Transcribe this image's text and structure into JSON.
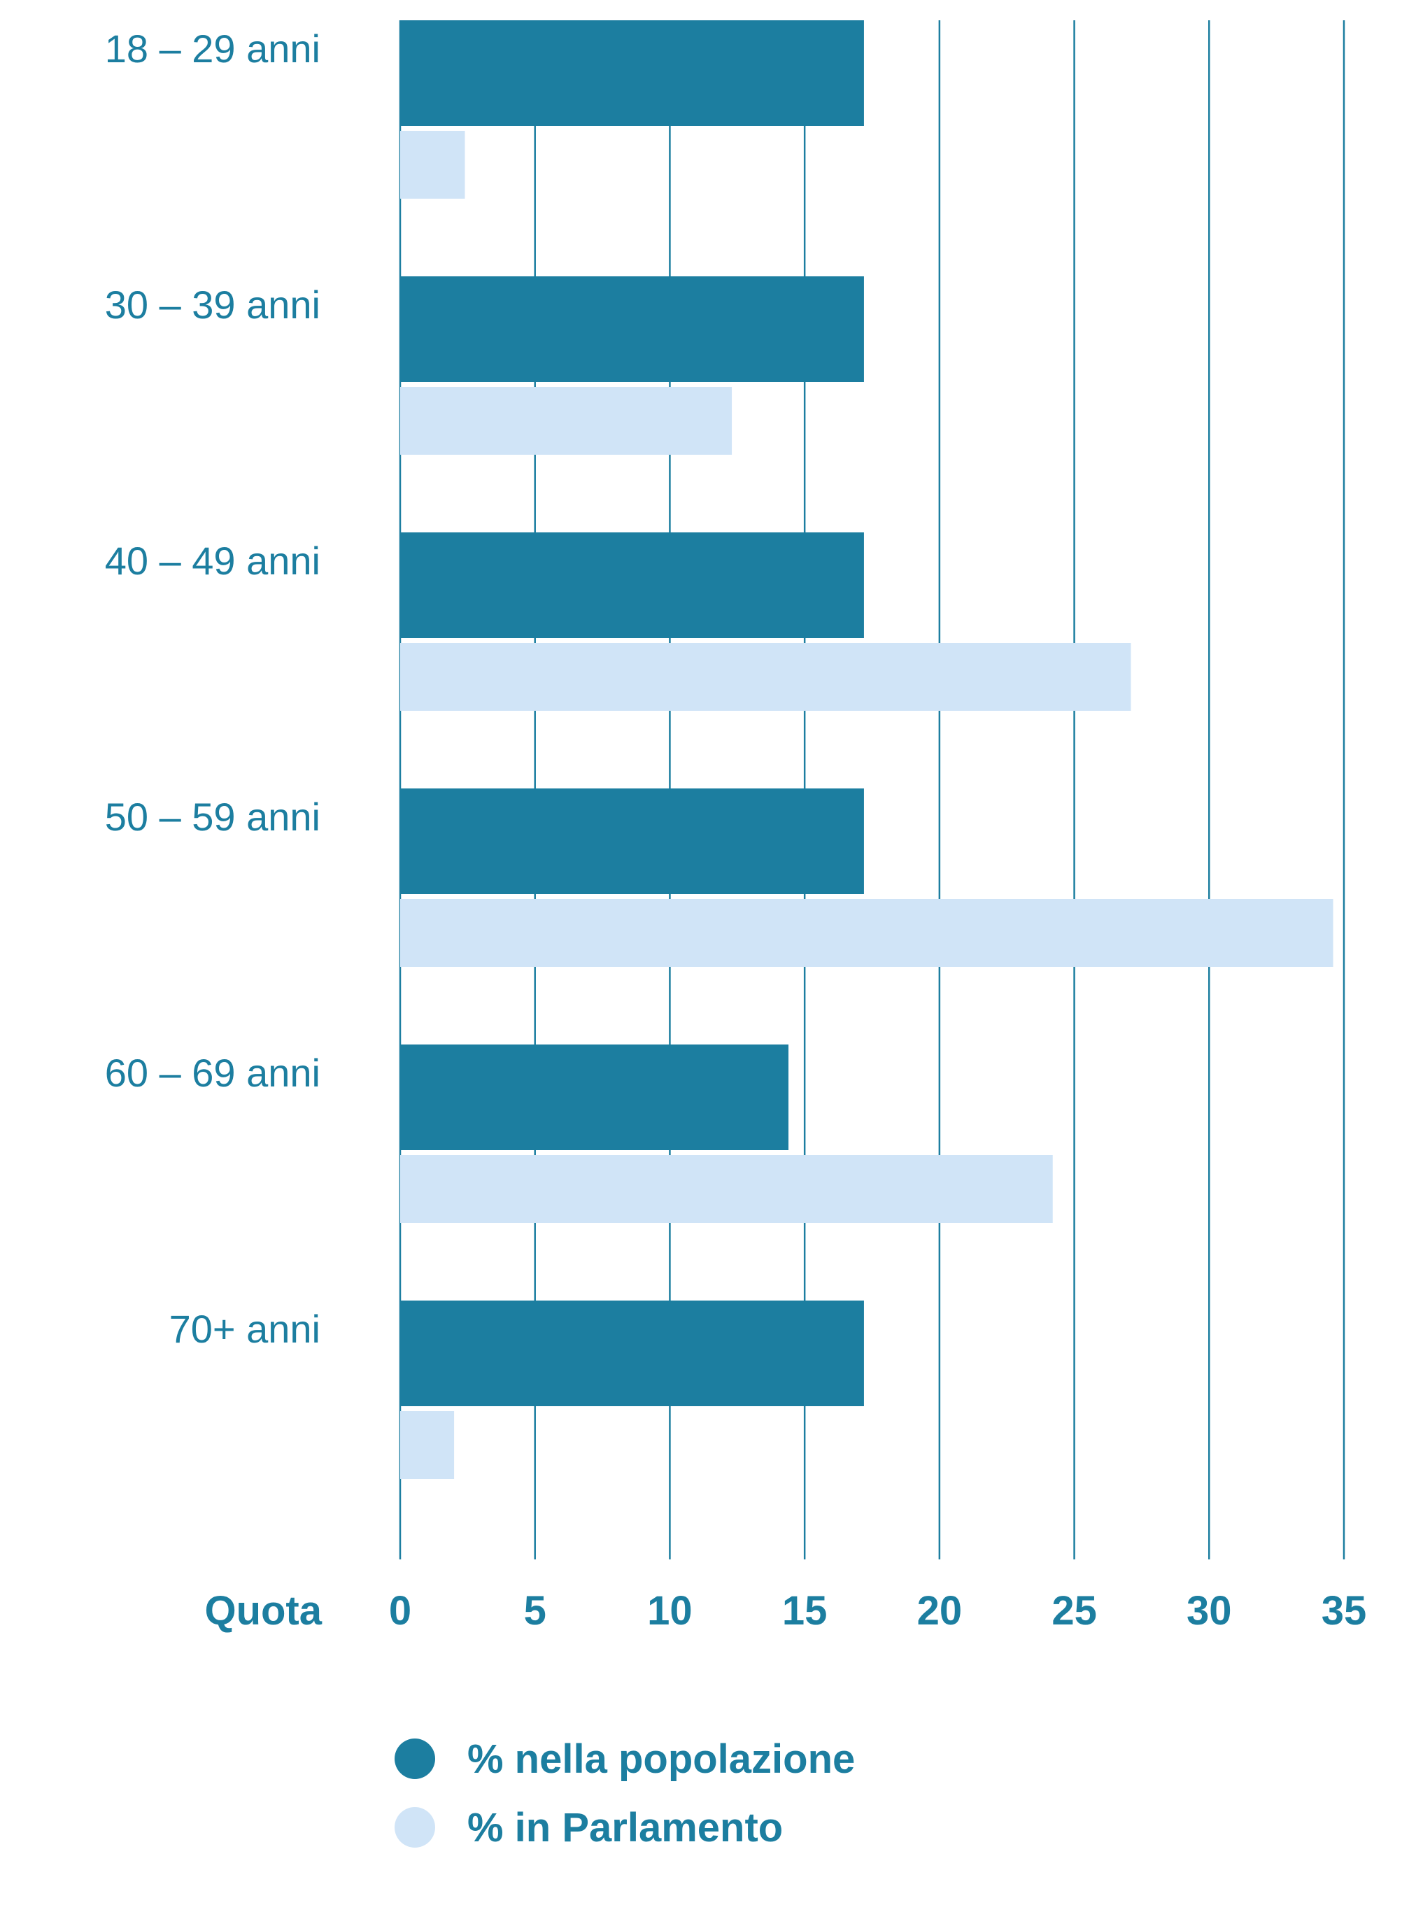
{
  "chart_data": {
    "type": "bar",
    "orientation": "horizontal",
    "categories": [
      "18 – 29 anni",
      "30 – 39 anni",
      "40 – 49 anni",
      "50 – 59 anni",
      "60 – 69 anni",
      "70+ anni"
    ],
    "series": [
      {
        "name": "% nella popolazione",
        "color": "#1c7ea0",
        "values": [
          17.2,
          17.2,
          17.2,
          17.2,
          14.4,
          17.2
        ]
      },
      {
        "name": "% in Parlamento",
        "color": "#d0e4f7",
        "values": [
          2.4,
          12.3,
          27.1,
          34.6,
          24.2,
          2.0
        ]
      }
    ],
    "xlabel": "Quota",
    "xlim": [
      0,
      35
    ],
    "xticks": [
      "0",
      "5",
      "10",
      "15",
      "20",
      "25",
      "30",
      "35"
    ],
    "grid": true,
    "legend_position": "bottom"
  }
}
